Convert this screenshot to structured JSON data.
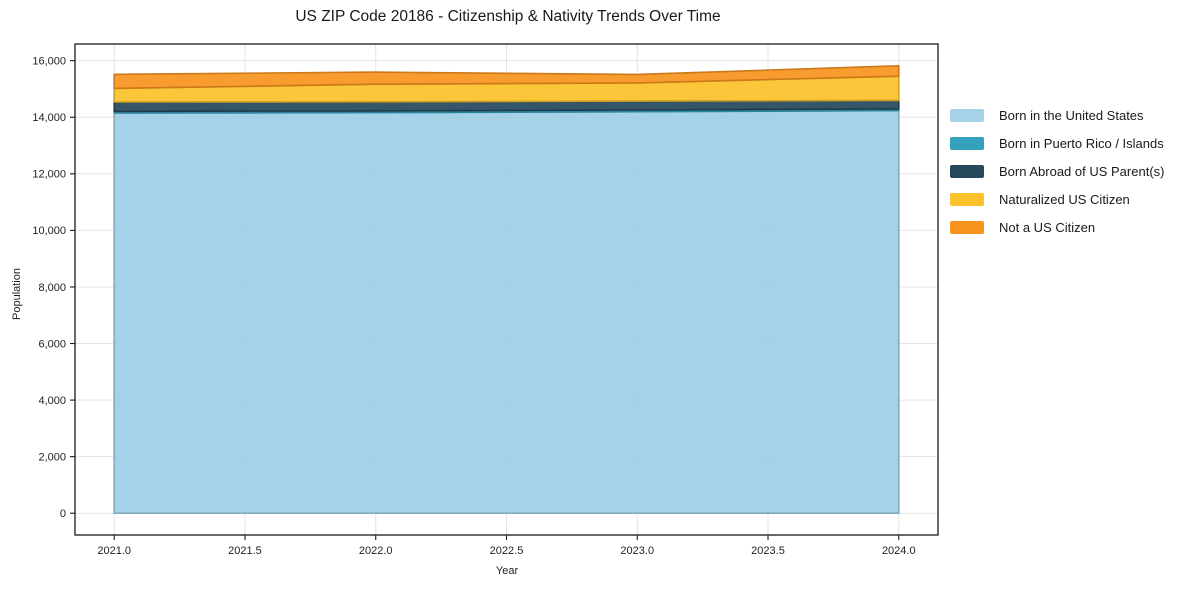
{
  "page": {
    "background": "#ffffff"
  },
  "chart_data": {
    "type": "area",
    "stacked": true,
    "title": "US ZIP Code 20186 - Citizenship & Nativity Trends Over Time",
    "xlabel": "Year",
    "ylabel": "Population",
    "x": [
      2021,
      2022,
      2023,
      2024
    ],
    "series": [
      {
        "name": "Born in the United States",
        "color": "#9ecfe6",
        "legend_color": "#a6d2e8",
        "values": [
          14150,
          14165,
          14195,
          14235
        ]
      },
      {
        "name": "Born in Puerto Rico / Islands",
        "color": "#35a1bf",
        "legend_color": "#35a1bf",
        "values": [
          60,
          60,
          60,
          60
        ]
      },
      {
        "name": "Born Abroad of US Parent(s)",
        "color": "#26495c",
        "legend_color": "#26495c",
        "values": [
          330,
          320,
          315,
          300
        ]
      },
      {
        "name": "Naturalized US Citizen",
        "color": "#fcc22c",
        "legend_color": "#fcc22c",
        "values": [
          480,
          625,
          645,
          855
        ]
      },
      {
        "name": "Not a US Citizen",
        "color": "#f7941f",
        "legend_color": "#f7941f",
        "values": [
          500,
          425,
          300,
          370
        ]
      }
    ],
    "totals": [
      15520,
      15595,
      15515,
      15820
    ],
    "xlim": [
      2020.85,
      2024.15
    ],
    "ylim": [
      -770,
      16590
    ],
    "xticks": {
      "values": [
        2021.0,
        2021.5,
        2022.0,
        2022.5,
        2023.0,
        2023.5,
        2024.0
      ],
      "labels": [
        "2021.0",
        "2021.5",
        "2022.0",
        "2022.5",
        "2023.0",
        "2023.5",
        "2024.0"
      ]
    },
    "yticks": {
      "values": [
        0,
        2000,
        4000,
        6000,
        8000,
        10000,
        12000,
        14000,
        16000
      ],
      "labels": [
        "0",
        "2,000",
        "4,000",
        "6,000",
        "8,000",
        "10,000",
        "12,000",
        "14,000",
        "16,000"
      ]
    },
    "grid": true,
    "legend_position": "outside-right-top",
    "colors": {
      "grid": "#e4e4e4",
      "spine": "#1a1a1a",
      "tick": "#1a1a1a",
      "text": "#1f1f1f"
    }
  }
}
